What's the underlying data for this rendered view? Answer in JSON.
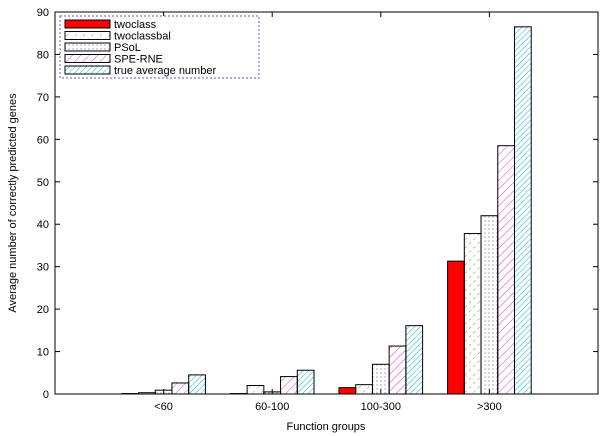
{
  "chart_data": {
    "type": "bar",
    "xlabel": "Function groups",
    "ylabel": "Average number of correctly predicted genes",
    "categories": [
      "<60",
      "60-100",
      "100-300",
      ">300"
    ],
    "ylim": [
      0,
      90
    ],
    "yticks": [
      0,
      10,
      20,
      30,
      40,
      50,
      60,
      70,
      80,
      90
    ],
    "grid": false,
    "legend_position": "top-left",
    "series": [
      {
        "name": "twoclass",
        "values": [
          0.1,
          0.1,
          1.5,
          31.3
        ],
        "color": "#ff0000",
        "pattern": "solid"
      },
      {
        "name": "twoclassbal",
        "values": [
          0.3,
          2.0,
          2.2,
          37.8
        ],
        "color": "#4caf50",
        "pattern": "dash-diag"
      },
      {
        "name": "PSoL",
        "values": [
          0.9,
          0.5,
          7.0,
          42.0
        ],
        "color": "#666666",
        "pattern": "dots"
      },
      {
        "name": "SPE-RNE",
        "values": [
          2.6,
          4.1,
          11.3,
          58.5
        ],
        "color": "#e040c8",
        "pattern": "diag"
      },
      {
        "name": "true average number",
        "values": [
          4.5,
          5.6,
          16.1,
          86.5
        ],
        "color": "#00bcd4",
        "pattern": "diag-dense"
      }
    ]
  }
}
